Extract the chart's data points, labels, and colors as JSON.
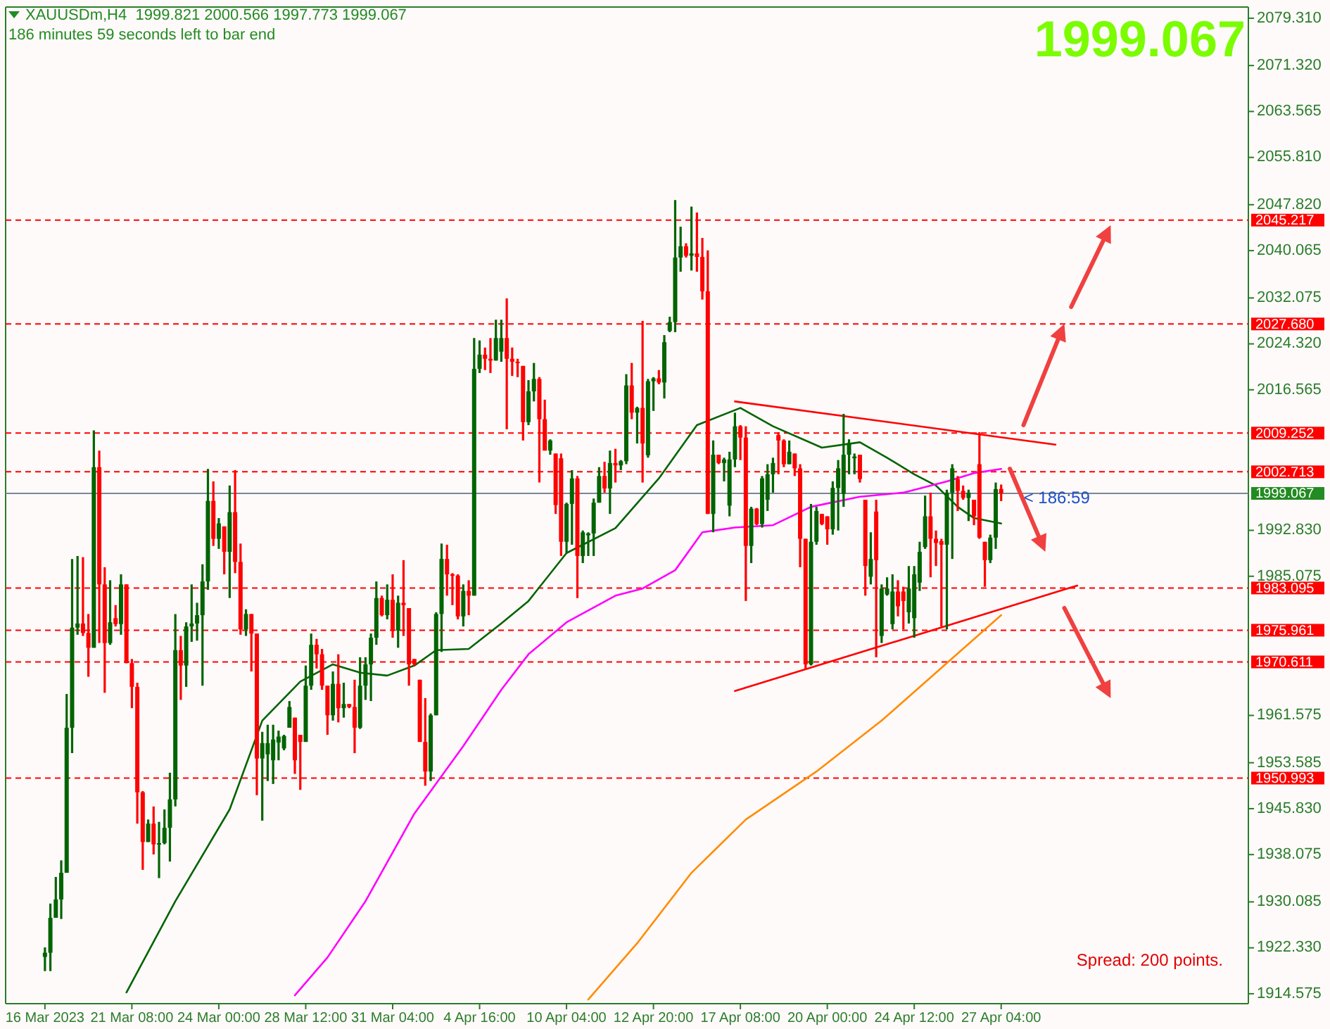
{
  "chart_data": {
    "type": "candlestick",
    "title": "XAUUSDm,H4  1999.821 2000.566 1997.773 1999.067",
    "subtitle": "186 minutes 59 seconds left to bar end",
    "categories": [
      "16 Mar 2023",
      null,
      null,
      null,
      null,
      null,
      null,
      null,
      null,
      null,
      null,
      null,
      null,
      null,
      null,
      null,
      "21 Mar 08:00",
      null,
      null,
      null,
      null,
      null,
      null,
      null,
      null,
      null,
      null,
      null,
      null,
      null,
      null,
      null,
      "24 Mar 00:00",
      null,
      null,
      null,
      null,
      null,
      null,
      null,
      null,
      null,
      null,
      null,
      null,
      null,
      null,
      null,
      "28 Mar 12:00",
      null,
      null,
      null,
      null,
      null,
      null,
      null,
      null,
      null,
      null,
      null,
      null,
      null,
      null,
      null,
      "31 Mar 04:00",
      null,
      null,
      null,
      null,
      null,
      null,
      null,
      null,
      null,
      null,
      null,
      null,
      null,
      null,
      null,
      "4 Apr 16:00",
      null,
      null,
      null,
      null,
      null,
      null,
      null,
      null,
      null,
      null,
      null,
      null,
      null,
      null,
      null,
      "10 Apr 04:00",
      null,
      null,
      null,
      null,
      null,
      null,
      null,
      null,
      null,
      null,
      null,
      null,
      null,
      null,
      null,
      "12 Apr 20:00",
      null,
      null,
      null,
      null,
      null,
      null,
      null,
      null,
      null,
      null,
      null,
      null,
      null,
      null,
      null,
      "17 Apr 08:00",
      null,
      null,
      null,
      null,
      null,
      null,
      null,
      null,
      null,
      null,
      null,
      null,
      null,
      null,
      null,
      "20 Apr 00:00",
      null,
      null,
      null,
      null,
      null,
      null,
      null,
      null,
      null,
      null,
      null,
      null,
      null,
      null,
      null,
      "24 Apr 12:00",
      null,
      null,
      null,
      null,
      null,
      null,
      null,
      null,
      null,
      null,
      null,
      null,
      null,
      null,
      null,
      "27 Apr 04:00",
      null,
      null,
      null,
      null,
      null,
      null,
      null,
      null,
      null,
      null,
      null,
      null,
      null,
      null,
      null,
      null,
      null,
      null,
      null,
      null,
      null,
      null,
      null,
      null,
      null,
      null,
      null,
      null,
      null,
      null,
      null,
      null,
      null,
      null,
      null,
      null,
      null,
      null,
      null,
      null,
      null,
      null,
      null,
      null,
      null
    ],
    "ohlc": [
      [
        1920.8,
        1922.4,
        1918.4,
        1921.5
      ],
      [
        1921.5,
        1929.8,
        1918.4,
        1927.4
      ],
      [
        1927.4,
        1934.3,
        1927.4,
        1930.5
      ],
      [
        1930.5,
        1937.1,
        1927.2,
        1935.0
      ],
      [
        1935.0,
        1965.2,
        1935.0,
        1959.5
      ],
      [
        1959.5,
        1988.0,
        1955.2,
        1976.4
      ],
      [
        1976.4,
        1988.5,
        1975.2,
        1977.1
      ],
      [
        1977.1,
        1988.3,
        1975.0,
        1975.5
      ],
      [
        1975.5,
        1978.7,
        1968.1,
        1973.0
      ],
      [
        1973.0,
        2009.7,
        1973.0,
        2003.5
      ],
      [
        2003.5,
        2006.3,
        1973.8,
        1983.7
      ],
      [
        1983.7,
        1986.6,
        1965.4,
        1973.8
      ],
      [
        1973.8,
        1984.4,
        1973.5,
        1977.3
      ],
      [
        1978.0,
        1980.2,
        1976.6,
        1977.0
      ],
      [
        1977.0,
        1985.4,
        1975.2,
        1983.7
      ],
      [
        1983.7,
        1983.7,
        1970.4,
        1970.4
      ],
      [
        1970.4,
        1971.1,
        1962.8,
        1966.4
      ],
      [
        1966.4,
        1967.1,
        1943.3,
        1948.6
      ],
      [
        1948.6,
        1948.8,
        1935.5,
        1940.2
      ],
      [
        1940.2,
        1944.0,
        1940.2,
        1943.3
      ],
      [
        1943.3,
        1946.2,
        1938.1,
        1939.8
      ],
      [
        1939.8,
        1943.6,
        1934.1,
        1940.0
      ],
      [
        1940.0,
        1945.7,
        1939.8,
        1942.6
      ],
      [
        1942.6,
        1951.9,
        1936.9,
        1947.4
      ],
      [
        1947.4,
        1978.7,
        1946.2,
        1972.6
      ],
      [
        1972.6,
        1975.0,
        1964.2,
        1970.0
      ],
      [
        1970.0,
        1977.3,
        1966.4,
        1976.6
      ],
      [
        1976.6,
        1983.7,
        1974.0,
        1977.1
      ],
      [
        1977.1,
        1980.6,
        1974.2,
        1978.5
      ],
      [
        1978.5,
        1987.1,
        1966.6,
        1984.2
      ],
      [
        1984.2,
        2003.2,
        1982.8,
        1997.8
      ],
      [
        1997.8,
        2001.1,
        1990.2,
        1991.4
      ],
      [
        1991.4,
        1994.9,
        1989.7,
        1994.0
      ],
      [
        1993.5,
        1993.5,
        1985.4,
        1989.2
      ],
      [
        1989.2,
        2000.4,
        1981.4,
        1995.9
      ],
      [
        1995.9,
        2003.0,
        1985.6,
        1987.5
      ],
      [
        1987.5,
        1990.6,
        1975.2,
        1976.1
      ],
      [
        1976.1,
        1979.5,
        1975.0,
        1978.7
      ],
      [
        1978.7,
        1978.7,
        1969.0,
        1975.4
      ],
      [
        1975.4,
        1975.4,
        1948.1,
        1954.3
      ],
      [
        1954.3,
        1958.8,
        1943.8,
        1956.9
      ],
      [
        1955.0,
        1960.0,
        1950.5,
        1956.9
      ],
      [
        1954.0,
        1960.0,
        1950.0,
        1957.5
      ],
      [
        1957.0,
        1959.0,
        1954.0,
        1958.0
      ],
      [
        1956.0,
        1958.3,
        1955.7,
        1958.1
      ],
      [
        1959.5,
        1964.0,
        1959.5,
        1963.0
      ],
      [
        1961.2,
        1961.2,
        1951.7,
        1954.0
      ],
      [
        1958.3,
        1958.3,
        1949.0,
        1957.1
      ],
      [
        1957.1,
        1970.0,
        1957.1,
        1966.6
      ],
      [
        1966.6,
        1975.4,
        1965.9,
        1973.5
      ],
      [
        1973.5,
        1974.5,
        1969.5,
        1971.9
      ],
      [
        1971.9,
        1972.8,
        1965.9,
        1966.6
      ],
      [
        1966.6,
        1966.6,
        1958.3,
        1961.6
      ],
      [
        1961.6,
        1969.0,
        1960.7,
        1966.9
      ],
      [
        1966.9,
        1971.9,
        1960.4,
        1962.8
      ],
      [
        1962.8,
        1967.1,
        1961.2,
        1963.5
      ],
      [
        1963.5,
        1963.5,
        1962.8,
        1963.0
      ],
      [
        1963.0,
        1967.6,
        1955.2,
        1959.5
      ],
      [
        1959.5,
        1971.4,
        1959.3,
        1966.6
      ],
      [
        1966.6,
        1971.4,
        1964.2,
        1970.2
      ],
      [
        1970.2,
        1975.4,
        1964.0,
        1974.7
      ],
      [
        1974.7,
        1984.2,
        1973.5,
        1981.4
      ],
      [
        1981.4,
        1981.8,
        1978.3,
        1978.5
      ],
      [
        1978.5,
        1983.7,
        1977.8,
        1981.1
      ],
      [
        1981.1,
        1985.4,
        1974.7,
        1975.9
      ],
      [
        1975.9,
        1981.8,
        1973.0,
        1980.6
      ],
      [
        1980.6,
        1987.8,
        1975.0,
        1980.2
      ],
      [
        1979.7,
        1979.7,
        1966.6,
        1970.2
      ],
      [
        1971.1,
        1971.1,
        1970.0,
        1970.2
      ],
      [
        1967.6,
        1967.6,
        1957.1,
        1957.1
      ],
      [
        1957.1,
        1964.5,
        1949.7,
        1952.1
      ],
      [
        1952.1,
        1961.9,
        1950.5,
        1961.6
      ],
      [
        1961.6,
        1979.0,
        1961.6,
        1978.7
      ],
      [
        1978.7,
        1990.6,
        1972.3,
        1988.0
      ],
      [
        1988.0,
        1990.4,
        1981.8,
        1985.4
      ],
      [
        1985.4,
        1985.6,
        1980.2,
        1985.2
      ],
      [
        1985.2,
        1985.4,
        1977.8,
        1978.3
      ],
      [
        1978.3,
        1983.7,
        1976.6,
        1982.6
      ],
      [
        1982.6,
        1984.4,
        1978.5,
        1981.8
      ],
      [
        1981.8,
        2025.3,
        1981.8,
        2020.1
      ],
      [
        2020.1,
        2024.9,
        2019.4,
        2022.5
      ],
      [
        2022.5,
        2023.7,
        2019.9,
        2021.8
      ],
      [
        2021.8,
        2025.3,
        2019.4,
        2021.5
      ],
      [
        2021.5,
        2028.4,
        2021.5,
        2025.3
      ],
      [
        2023.0,
        2028.4,
        2021.3,
        2025.3
      ],
      [
        2025.3,
        2032.0,
        2009.9,
        2021.8
      ],
      [
        2021.8,
        2023.7,
        2018.9,
        2021.3
      ],
      [
        2021.3,
        2021.8,
        2018.7,
        2021.1
      ],
      [
        2020.6,
        2020.6,
        2008.0,
        2011.1
      ],
      [
        2011.1,
        2018.2,
        2010.6,
        2016.3
      ],
      [
        2016.3,
        2021.1,
        2014.6,
        2018.4
      ],
      [
        2018.4,
        2018.7,
        2000.9,
        2011.6
      ],
      [
        2011.6,
        2014.9,
        2006.3,
        2006.3
      ],
      [
        2006.3,
        2008.2,
        2005.6,
        2008.0
      ],
      [
        2005.8,
        2005.8,
        1995.6,
        1997.1
      ],
      [
        2005.0,
        2005.8,
        1988.5,
        1990.9
      ],
      [
        1990.9,
        1997.5,
        1989.0,
        1997.3
      ],
      [
        1997.3,
        2003.0,
        1990.4,
        2001.6
      ],
      [
        2001.6,
        2002.0,
        1981.4,
        1988.5
      ],
      [
        1988.5,
        1992.8,
        1987.3,
        1992.5
      ],
      [
        1992.0,
        1992.5,
        1988.5,
        1992.3
      ],
      [
        1992.3,
        1998.2,
        1988.5,
        1997.5
      ],
      [
        1997.5,
        2003.5,
        1997.5,
        2002.0
      ],
      [
        2002.0,
        2004.4,
        1999.2,
        1999.9
      ],
      [
        1999.9,
        2006.3,
        1995.6,
        2004.2
      ],
      [
        2004.2,
        2006.6,
        2000.9,
        2003.8
      ],
      [
        2003.8,
        2004.7,
        2003.0,
        2004.5
      ],
      [
        2004.5,
        2019.2,
        2004.0,
        2017.3
      ],
      [
        2017.3,
        2021.1,
        2011.6,
        2012.7
      ],
      [
        2012.7,
        2013.7,
        2007.5,
        2013.5
      ],
      [
        2013.5,
        2028.2,
        2000.9,
        2007.5
      ],
      [
        2005.5,
        2018.4,
        2005.1,
        2018.0
      ],
      [
        2018.0,
        2018.7,
        2013.0,
        2018.5
      ],
      [
        2018.5,
        2019.9,
        2017.5,
        2017.8
      ],
      [
        2017.8,
        2025.8,
        2015.1,
        2024.6
      ],
      [
        2026.5,
        2028.9,
        2026.3,
        2028.0
      ],
      [
        2028.0,
        2048.6,
        2026.3,
        2038.9
      ],
      [
        2038.9,
        2044.1,
        2036.5,
        2040.8
      ],
      [
        2040.8,
        2041.3,
        2038.9,
        2039.2
      ],
      [
        2039.2,
        2047.5,
        2036.7,
        2039.6
      ],
      [
        2039.6,
        2046.5,
        2036.5,
        2039.0
      ],
      [
        2039.0,
        2042.2,
        2031.8,
        2033.2
      ],
      [
        2033.2,
        2040.1,
        1995.6,
        1995.6
      ],
      [
        1995.6,
        2008.0,
        1992.5,
        2005.6
      ],
      [
        2005.6,
        2005.6,
        2004.0,
        2004.2
      ],
      [
        2004.2,
        2005.1,
        2001.1,
        2004.8
      ],
      [
        1997.0,
        2006.1,
        1995.2,
        2004.8
      ],
      [
        2004.8,
        2012.7,
        2003.5,
        2010.4
      ],
      [
        2010.4,
        2010.6,
        2004.7,
        2008.5
      ],
      [
        2008.5,
        2010.4,
        1980.9,
        1990.2
      ],
      [
        1990.2,
        1996.8,
        1987.3,
        1996.5
      ],
      [
        1996.5,
        1996.6,
        1993.7,
        1993.9
      ],
      [
        1993.9,
        2002.0,
        1993.3,
        2001.6
      ],
      [
        1998.0,
        2004.0,
        1996.1,
        2002.3
      ],
      [
        2002.3,
        2005.1,
        1999.2,
        2004.2
      ],
      [
        2008.9,
        2009.4,
        2002.3,
        2008.0
      ],
      [
        2008.0,
        2008.2,
        2003.5,
        2004.0
      ],
      [
        2004.0,
        2008.0,
        2004.0,
        2006.1
      ],
      [
        2005.8,
        2005.8,
        2002.0,
        2003.3
      ],
      [
        2003.3,
        2004.0,
        1986.6,
        1991.4
      ],
      [
        1991.4,
        1991.4,
        1969.5,
        1970.2
      ],
      [
        1970.2,
        1997.3,
        1970.0,
        1990.9
      ],
      [
        1990.9,
        1996.8,
        1990.4,
        1996.1
      ],
      [
        1995.6,
        1995.6,
        1993.7,
        1993.9
      ],
      [
        1995.2,
        1995.2,
        1990.4,
        1993.0
      ],
      [
        1993.0,
        2001.1,
        1992.1,
        2000.0
      ],
      [
        2000.0,
        2004.7,
        1992.8,
        2003.3
      ],
      [
        1999.0,
        2012.5,
        1996.8,
        2005.6
      ],
      [
        2005.6,
        2008.2,
        2002.3,
        2007.6
      ],
      [
        2005.0,
        2005.8,
        2002.3,
        2005.3
      ],
      [
        2005.6,
        2005.6,
        2000.9,
        2001.5
      ],
      [
        1998.0,
        1998.0,
        1981.8,
        1986.8
      ],
      [
        1985.0,
        1992.5,
        1983.7,
        1988.0
      ],
      [
        1996.0,
        1998.0,
        1971.4,
        1987.8
      ],
      [
        1975.0,
        1983.7,
        1973.8,
        1983.0
      ],
      [
        1982.0,
        1984.9,
        1981.8,
        1983.0
      ],
      [
        1977.0,
        1985.4,
        1976.1,
        1982.5
      ],
      [
        1982.5,
        1984.4,
        1978.3,
        1980.0
      ],
      [
        1982.5,
        1983.3,
        1976.1,
        1980.9
      ],
      [
        1979.0,
        1986.8,
        1977.1,
        1983.0
      ],
      [
        1978.0,
        1986.8,
        1974.7,
        1985.4
      ],
      [
        1984.0,
        1990.9,
        1982.6,
        1989.2
      ],
      [
        1990.0,
        1998.7,
        1989.7,
        1995.2
      ],
      [
        1995.2,
        1999.2,
        1984.9,
        1991.4
      ],
      [
        1991.4,
        1992.8,
        1986.8,
        1990.7
      ],
      [
        1991.0,
        1991.4,
        1976.6,
        1990.4
      ],
      [
        1990.4,
        1999.7,
        1976.1,
        1999.2
      ],
      [
        1999.2,
        2004.0,
        1988.0,
        2003.3
      ],
      [
        2001.5,
        2002.0,
        1996.1,
        1999.5
      ],
      [
        1999.5,
        2000.4,
        1998.0,
        1998.3
      ],
      [
        1998.3,
        1999.7,
        1994.4,
        1999.2
      ],
      [
        1998.0,
        1998.0,
        1993.7,
        1995.2
      ],
      [
        2004.0,
        2009.4,
        1991.4,
        1991.6
      ],
      [
        1990.9,
        1990.9,
        1983.3,
        1987.8
      ],
      [
        1987.8,
        1992.1,
        1987.3,
        1991.6
      ],
      [
        1991.6,
        2000.9,
        1989.7,
        1999.8
      ],
      [
        1999.821,
        2000.566,
        1997.773,
        1999.067
      ],
      null,
      null,
      null,
      null,
      null,
      null,
      null,
      null,
      null,
      null,
      null,
      null,
      null,
      null,
      null,
      null,
      null,
      null,
      null,
      null,
      null,
      null,
      null,
      null,
      null,
      null,
      null,
      null,
      null,
      null,
      null,
      null,
      null,
      null,
      null,
      null,
      null,
      null,
      null,
      null,
      null,
      null,
      null,
      null,
      null
    ],
    "series": [
      {
        "type": "line",
        "color": "#006400",
        "values": [
          null,
          null,
          null,
          null,
          null,
          null,
          null,
          null,
          null,
          null,
          null,
          null,
          null,
          null,
          null,
          1914.8,
          null,
          null,
          null,
          null,
          null,
          null,
          null,
          null,
          1930.2,
          null,
          null,
          null,
          null,
          null,
          null,
          null,
          null,
          null,
          1945.7,
          null,
          null,
          null,
          null,
          null,
          1960.7,
          null,
          null,
          null,
          null,
          null,
          null,
          1967.3,
          null,
          null,
          null,
          null,
          null,
          1970.2,
          null,
          null,
          null,
          null,
          1968.8,
          null,
          null,
          null,
          null,
          1968.3,
          null,
          null,
          null,
          null,
          1970.0,
          null,
          null,
          null,
          1972.6,
          null,
          null,
          null,
          null,
          null,
          1972.8,
          null,
          null,
          null,
          null,
          null,
          1977.1,
          null,
          null,
          null,
          null,
          1980.9,
          null,
          null,
          null,
          null,
          null,
          null,
          1989.0,
          null,
          null,
          null,
          null,
          null,
          null,
          null,
          null,
          1993.2,
          null,
          null,
          null,
          null,
          null,
          null,
          null,
          2001.6,
          null,
          null,
          null,
          null,
          null,
          null,
          2010.6,
          null,
          null,
          null,
          null,
          null,
          null,
          null,
          2013.5,
          null,
          null,
          null,
          null,
          null,
          2010.4,
          null,
          null,
          null,
          null,
          null,
          null,
          null,
          null,
          2006.8,
          null,
          null,
          null,
          null,
          null,
          null,
          2007.7,
          null,
          null,
          null,
          null,
          2005.1,
          null,
          null,
          null,
          null,
          2002.3,
          null,
          null,
          null,
          2000.4,
          null,
          null,
          null,
          1996.8,
          null,
          null,
          1994.9,
          null,
          null,
          null,
          null,
          1994.0,
          null,
          null,
          null,
          null,
          null,
          null,
          null,
          null,
          null,
          null,
          null,
          null,
          null,
          null,
          null,
          null,
          null,
          null,
          null,
          null,
          null,
          null,
          null,
          null,
          null,
          null,
          null,
          null,
          null,
          null,
          null,
          null,
          null,
          null,
          null,
          null,
          null,
          null,
          null,
          null,
          null,
          null,
          null,
          null,
          null
        ]
      },
      {
        "type": "line",
        "color": "#ff00ff",
        "values": [
          null,
          null,
          null,
          null,
          null,
          null,
          null,
          null,
          null,
          null,
          null,
          null,
          null,
          null,
          null,
          null,
          null,
          null,
          null,
          null,
          null,
          null,
          null,
          null,
          null,
          null,
          null,
          null,
          null,
          null,
          null,
          null,
          null,
          null,
          null,
          null,
          null,
          null,
          null,
          null,
          null,
          null,
          null,
          null,
          null,
          null,
          1914.3,
          null,
          null,
          null,
          null,
          null,
          1920.7,
          null,
          null,
          null,
          null,
          null,
          null,
          1930.2,
          null,
          null,
          null,
          null,
          null,
          null,
          null,
          null,
          1945.0,
          null,
          null,
          null,
          null,
          null,
          null,
          null,
          null,
          1956.4,
          null,
          null,
          null,
          null,
          null,
          null,
          1965.9,
          null,
          null,
          null,
          null,
          1971.9,
          null,
          null,
          null,
          null,
          null,
          null,
          1977.3,
          null,
          null,
          null,
          null,
          null,
          null,
          null,
          null,
          1981.8,
          null,
          null,
          null,
          null,
          1983.0,
          null,
          null,
          null,
          null,
          null,
          1986.1,
          null,
          null,
          null,
          null,
          1992.5,
          null,
          null,
          null,
          null,
          null,
          1993.3,
          null,
          null,
          null,
          null,
          null,
          null,
          1993.7,
          null,
          null,
          null,
          null,
          null,
          null,
          1996.8,
          null,
          null,
          null,
          null,
          null,
          null,
          null,
          null,
          1998.5,
          null,
          null,
          null,
          null,
          null,
          null,
          null,
          1999.2,
          null,
          null,
          null,
          null,
          null,
          null,
          null,
          2001.1,
          null,
          null,
          null,
          null,
          2002.5,
          null,
          null,
          null,
          null,
          2003.2,
          null,
          null,
          null,
          null,
          null,
          null,
          null,
          null,
          null,
          null,
          null,
          null,
          null,
          null,
          null,
          null,
          null,
          null,
          null,
          null,
          null,
          null,
          null,
          null,
          null,
          null,
          null,
          null,
          null,
          null,
          null,
          null,
          null,
          null,
          null,
          null,
          null,
          null,
          null,
          null,
          null,
          null,
          null,
          null,
          null
        ]
      },
      {
        "type": "line",
        "color": "#ff8c00",
        "values": [
          null,
          null,
          null,
          null,
          null,
          null,
          null,
          null,
          null,
          null,
          null,
          null,
          null,
          null,
          null,
          null,
          null,
          null,
          null,
          null,
          null,
          null,
          null,
          null,
          null,
          null,
          null,
          null,
          null,
          null,
          null,
          null,
          null,
          null,
          null,
          null,
          null,
          null,
          null,
          null,
          null,
          null,
          null,
          null,
          null,
          null,
          null,
          null,
          null,
          null,
          null,
          null,
          null,
          null,
          null,
          null,
          null,
          null,
          null,
          null,
          null,
          null,
          null,
          null,
          null,
          null,
          null,
          null,
          null,
          null,
          null,
          null,
          null,
          null,
          null,
          null,
          null,
          null,
          null,
          null,
          null,
          null,
          null,
          null,
          null,
          null,
          null,
          null,
          null,
          null,
          null,
          null,
          null,
          null,
          null,
          null,
          null,
          null,
          null,
          null,
          1913.6,
          null,
          null,
          null,
          null,
          null,
          null,
          null,
          null,
          1923.1,
          null,
          null,
          null,
          null,
          null,
          null,
          null,
          null,
          null,
          1935.0,
          null,
          null,
          null,
          null,
          null,
          null,
          null,
          null,
          null,
          1944.0,
          null,
          null,
          null,
          null,
          null,
          null,
          null,
          null,
          null,
          null,
          null,
          null,
          1952.1,
          null,
          null,
          null,
          null,
          null,
          null,
          null,
          null,
          null,
          null,
          null,
          1960.7,
          null,
          null,
          null,
          null,
          null,
          null,
          null,
          null,
          null,
          1968.8,
          null,
          null,
          null,
          null,
          null,
          null,
          null,
          null,
          null,
          null,
          null,
          1978.5,
          null,
          null,
          null,
          null,
          null,
          null,
          null,
          null,
          null,
          null,
          null,
          null,
          null,
          null,
          null,
          null,
          null,
          null,
          null,
          null,
          null,
          null,
          null,
          null,
          null,
          null,
          null,
          null,
          null,
          null,
          null,
          null,
          null,
          null,
          null,
          null,
          null,
          null,
          null,
          null,
          null,
          null,
          null,
          null,
          null
        ]
      },
      {
        "type": "line",
        "color": "#ff0000",
        "values": [
          null,
          null,
          null,
          null,
          null,
          null,
          null,
          null,
          null,
          null,
          null,
          null,
          null,
          null,
          null,
          null,
          null,
          null,
          null,
          null,
          null,
          null,
          null,
          null,
          null,
          null,
          null,
          null,
          null,
          null,
          null,
          null,
          null,
          null,
          null,
          null,
          null,
          null,
          null,
          null,
          null,
          null,
          null,
          null,
          null,
          null,
          null,
          null,
          null,
          null,
          null,
          null,
          null,
          null,
          null,
          null,
          null,
          null,
          null,
          null,
          null,
          null,
          null,
          null,
          null,
          null,
          null,
          null,
          null,
          null,
          null,
          null,
          null,
          null,
          null,
          null,
          null,
          null,
          null,
          null,
          null,
          null,
          null,
          null,
          null,
          null,
          null,
          null,
          null,
          null,
          null,
          null,
          null,
          null,
          null,
          null,
          null,
          null,
          null,
          null,
          null,
          null,
          null,
          null,
          null,
          null,
          null,
          null,
          null,
          null,
          null,
          null,
          null,
          null,
          null,
          null,
          null,
          null,
          null,
          null,
          null,
          null,
          null,
          null,
          null,
          null,
          null,
          2014.6,
          null,
          null,
          null,
          null,
          null,
          null,
          null,
          null,
          null,
          null,
          null,
          null,
          null,
          null,
          null,
          null,
          null,
          null,
          null,
          null,
          null,
          null,
          null,
          null,
          null,
          null,
          null,
          null,
          null,
          null,
          null,
          null,
          null,
          null,
          null,
          null,
          null,
          null,
          null,
          null,
          null,
          null,
          null,
          null,
          null,
          null,
          null,
          null,
          null,
          null,
          null,
          null,
          null,
          null,
          null,
          null,
          null,
          null,
          2007.3,
          null,
          null,
          null,
          null,
          null,
          null,
          null,
          null,
          null,
          null,
          null,
          null,
          null,
          null,
          null,
          null,
          null,
          null,
          null,
          null,
          null,
          null,
          null,
          null,
          null,
          null,
          null,
          null,
          null,
          null,
          null,
          null,
          null,
          null,
          null
        ]
      },
      {
        "type": "line",
        "color": "#ff0000",
        "values": [
          null,
          null,
          null,
          null,
          null,
          null,
          null,
          null,
          null,
          null,
          null,
          null,
          null,
          null,
          null,
          null,
          null,
          null,
          null,
          null,
          null,
          null,
          null,
          null,
          null,
          null,
          null,
          null,
          null,
          null,
          null,
          null,
          null,
          null,
          null,
          null,
          null,
          null,
          null,
          null,
          null,
          null,
          null,
          null,
          null,
          null,
          null,
          null,
          null,
          null,
          null,
          null,
          null,
          null,
          null,
          null,
          null,
          null,
          null,
          null,
          null,
          null,
          null,
          null,
          null,
          null,
          null,
          null,
          null,
          null,
          null,
          null,
          null,
          null,
          null,
          null,
          null,
          null,
          null,
          null,
          null,
          null,
          null,
          null,
          null,
          null,
          null,
          null,
          null,
          null,
          null,
          null,
          null,
          null,
          null,
          null,
          null,
          null,
          null,
          null,
          null,
          null,
          null,
          null,
          null,
          null,
          null,
          null,
          null,
          null,
          null,
          null,
          null,
          null,
          null,
          null,
          null,
          null,
          null,
          null,
          null,
          null,
          null,
          null,
          null,
          null,
          null,
          1965.7,
          null,
          null,
          null,
          null,
          null,
          null,
          null,
          null,
          null,
          null,
          null,
          null,
          null,
          null,
          null,
          null,
          null,
          null,
          null,
          null,
          null,
          null,
          null,
          null,
          null,
          null,
          null,
          null,
          null,
          null,
          null,
          null,
          null,
          null,
          null,
          null,
          null,
          null,
          null,
          null,
          null,
          null,
          null,
          null,
          null,
          null,
          null,
          null,
          null,
          null,
          null,
          null,
          null,
          null,
          null,
          null,
          null,
          null,
          null,
          null,
          null,
          null,
          1983.5,
          null,
          null,
          null,
          null,
          null,
          null,
          null,
          null,
          null,
          null,
          null,
          null,
          null,
          null,
          null,
          null,
          null,
          null,
          null,
          null,
          null,
          null,
          null,
          null,
          null,
          null,
          null,
          null,
          null,
          null,
          null
        ]
      }
    ],
    "ylim": [
      1912.9,
      2081.2
    ],
    "yticks": [
      {
        "value": 2079.31,
        "label": "2079.310"
      },
      {
        "value": 2071.32,
        "label": "2071.320"
      },
      2063.565,
      {
        "value": 2055.81,
        "label": "2055.810"
      },
      {
        "value": 2047.82,
        "label": "2047.820"
      },
      2040.065,
      2032.075,
      {
        "value": 2024.32,
        "label": "2024.320"
      },
      2016.565,
      {
        "value": 1992.83,
        "label": "1992.830"
      },
      1985.075,
      1961.575,
      1953.585,
      {
        "value": 1945.83,
        "label": "1945.830"
      },
      1938.075,
      1930.085,
      {
        "value": 1922.33,
        "label": "1922.330"
      },
      1914.575
    ],
    "ref_lines": [
      {
        "axis": "y",
        "value": 2045.217,
        "label": "2045.217",
        "color": "#ff0000",
        "line_style": "dashed"
      },
      {
        "axis": "y",
        "value": 2027.68,
        "label": "2027.680",
        "color": "#ff0000",
        "line_style": "dashed"
      },
      {
        "axis": "y",
        "value": 2009.252,
        "label": "2009.252",
        "color": "#ff0000",
        "line_style": "dashed"
      },
      {
        "axis": "y",
        "value": 2002.713,
        "label": "2002.713",
        "color": "#ff0000",
        "line_style": "dashed"
      },
      {
        "axis": "y",
        "value": 1983.095,
        "label": "1983.095",
        "color": "#ff0000",
        "line_style": "dashed"
      },
      {
        "axis": "y",
        "value": 1975.961,
        "label": "1975.961",
        "color": "#ff0000",
        "line_style": "dashed"
      },
      {
        "axis": "y",
        "value": 1970.611,
        "label": "1970.611",
        "color": "#ff0000",
        "line_style": "dashed"
      },
      {
        "axis": "y",
        "value": 1950.993,
        "label": "1950.993",
        "color": "#ff0000",
        "line_style": "dashed"
      },
      {
        "axis": "y",
        "value": 1999.067,
        "label": "1999.067",
        "color": "#778899",
        "line_style": "solid"
      }
    ],
    "annotations": [
      "1999.067",
      {
        "text": "< 186:59",
        "y": 1999.067
      },
      "Spread: 200 points."
    ]
  }
}
